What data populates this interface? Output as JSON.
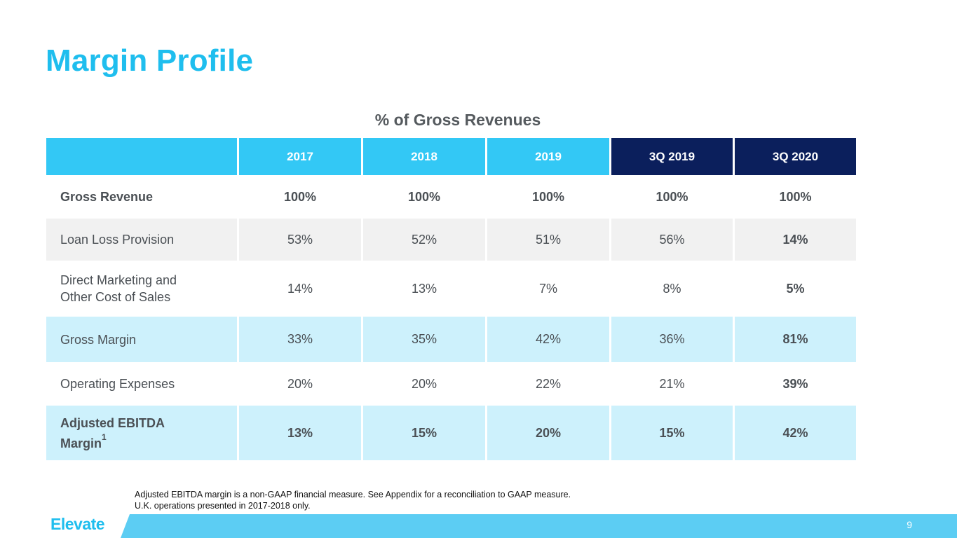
{
  "title": "Margin Profile",
  "subtitle": "% of Gross Revenues",
  "columns": [
    "2017",
    "2018",
    "2019",
    "3Q 2019",
    "3Q 2020"
  ],
  "rows": [
    {
      "label": "Gross Revenue",
      "values": [
        "100%",
        "100%",
        "100%",
        "100%",
        "100%"
      ]
    },
    {
      "label": "Loan Loss Provision",
      "values": [
        "53%",
        "52%",
        "51%",
        "56%",
        "14%"
      ]
    },
    {
      "label_line1": "Direct Marketing and",
      "label_line2": "Other Cost of Sales",
      "values": [
        "14%",
        "13%",
        "7%",
        "8%",
        "5%"
      ]
    },
    {
      "label": "Gross Margin",
      "values": [
        "33%",
        "35%",
        "42%",
        "36%",
        "81%"
      ]
    },
    {
      "label": "Operating Expenses",
      "values": [
        "20%",
        "20%",
        "22%",
        "21%",
        "39%"
      ]
    },
    {
      "label_line1": "Adjusted EBITDA",
      "label_line2": "Margin",
      "footnote_mark": "1",
      "values": [
        "13%",
        "15%",
        "20%",
        "15%",
        "42%"
      ]
    }
  ],
  "footnotes": [
    "Adjusted EBITDA margin is a non-GAAP financial measure. See Appendix for a reconciliation to GAAP measure.",
    "U.K. operations presented in 2017-2018 only."
  ],
  "footer": {
    "logo_text": "Elevate",
    "page_number": "9"
  },
  "colors": {
    "accent": "#1fbeee",
    "header_light": "#33c8f5",
    "header_dark": "#0b1f5c",
    "row_grey": "#f1f1f1",
    "row_blue": "#cdf1fc"
  }
}
